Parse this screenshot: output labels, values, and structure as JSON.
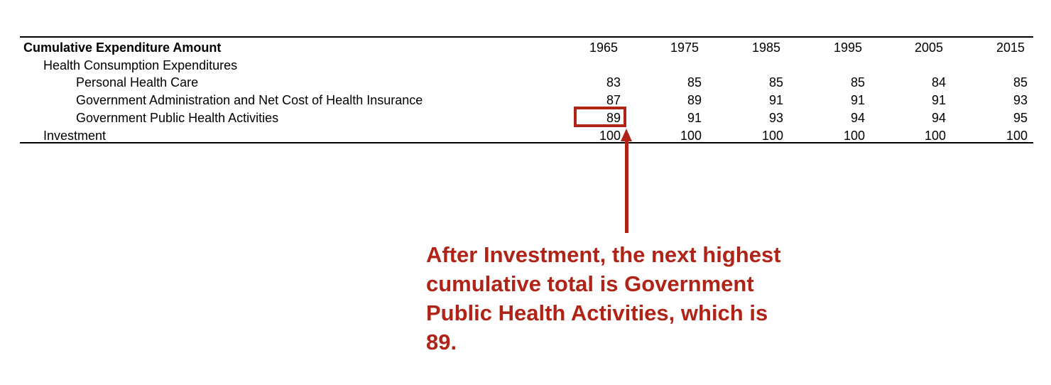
{
  "table": {
    "header": {
      "label": "Cumulative Expenditure Amount",
      "years": [
        "1965",
        "1975",
        "1985",
        "1995",
        "2005",
        "2015"
      ]
    },
    "rows": [
      {
        "label": "Health Consumption Expenditures",
        "indent": 1,
        "values": [
          "",
          "",
          "",
          "",
          "",
          ""
        ]
      },
      {
        "label": "Personal Health Care",
        "indent": 2,
        "values": [
          "83",
          "85",
          "85",
          "85",
          "84",
          "85"
        ]
      },
      {
        "label": "Government Administration and Net Cost of Health Insurance",
        "indent": 2,
        "values": [
          "87",
          "89",
          "91",
          "91",
          "91",
          "93"
        ]
      },
      {
        "label": "Government Public Health Activities",
        "indent": 2,
        "values": [
          "89",
          "91",
          "93",
          "94",
          "94",
          "95"
        ]
      },
      {
        "label": "Investment",
        "indent": 1,
        "values": [
          "100",
          "100",
          "100",
          "100",
          "100",
          "100"
        ]
      }
    ]
  },
  "annotation": {
    "lines": [
      "After Investment, the next highest",
      "cumulative total is Government",
      "Public Health Activities, which is",
      "89."
    ],
    "color": "#b02418"
  }
}
